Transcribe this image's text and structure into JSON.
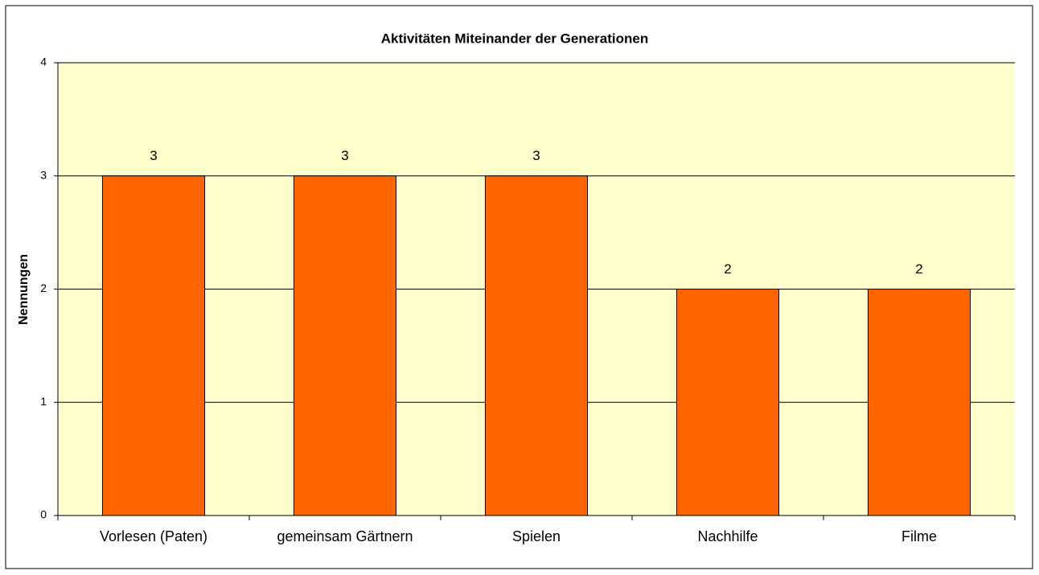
{
  "chart_data": {
    "type": "bar",
    "title": "Aktivitäten Miteinander der Generationen",
    "y_label": "Nennungen",
    "categories": [
      "Vorlesen (Paten)",
      "gemeinsam Gärtnern",
      "Spielen",
      "Nachhilfe",
      "Filme"
    ],
    "values": [
      3,
      3,
      3,
      2,
      2
    ],
    "color": "#ff6600",
    "plot_background": "#ffffcc",
    "ylim": [
      0,
      4
    ],
    "yticks": [
      0,
      1,
      2,
      3,
      4
    ],
    "grid": true
  }
}
